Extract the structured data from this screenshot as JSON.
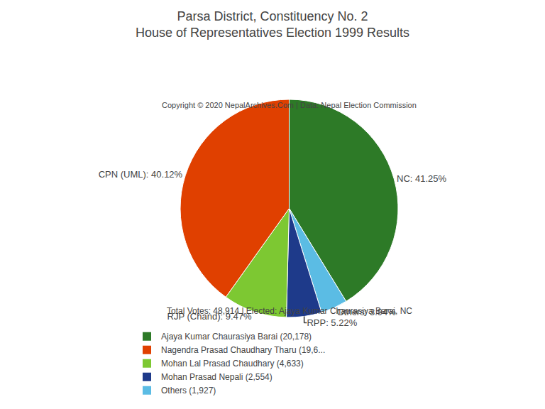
{
  "chart_data": {
    "type": "pie",
    "title": [
      "Parsa District, Constituency No. 2",
      "House of Representatives Election 1999 Results"
    ],
    "subtitle": "Total Votes: 48,914 | Elected: Ajaya Kumar Chaurasiya Barai, NC",
    "annotations": [
      "Copyright © 2020 NepalArchives.Com | Data: Nepal Election Commission"
    ],
    "categories": [
      "NC",
      "Others",
      "RPP",
      "RJP (Chand)",
      "CPN (UML)"
    ],
    "values": [
      41.25,
      3.94,
      5.22,
      9.47,
      40.12
    ],
    "value_labels": [
      "NC: 41.25%",
      "Others: 3.94%",
      "RPP: 5.22%",
      "RJP (Chand): 9.47%",
      "CPN (UML): 40.12%"
    ],
    "colors": [
      "#2d7a27",
      "#5bbce4",
      "#1e3a8a",
      "#7dc832",
      "#e04000"
    ],
    "data_labels": true,
    "legend": "bottom",
    "series": [
      {
        "name": "Ajaya Kumar Chaurasiya Barai (20,178)",
        "color": "#2d7a27"
      },
      {
        "name": "Nagendra Prasad Chaudhary Tharu (19,6...",
        "color": "#e04000"
      },
      {
        "name": "Mohan Lal Prasad Chaudhary (4,633)",
        "color": "#7dc832"
      },
      {
        "name": "Mohan Prasad Nepali (2,554)",
        "color": "#1e3a8a"
      },
      {
        "name": "Others (1,927)",
        "color": "#5bbce4"
      }
    ]
  }
}
